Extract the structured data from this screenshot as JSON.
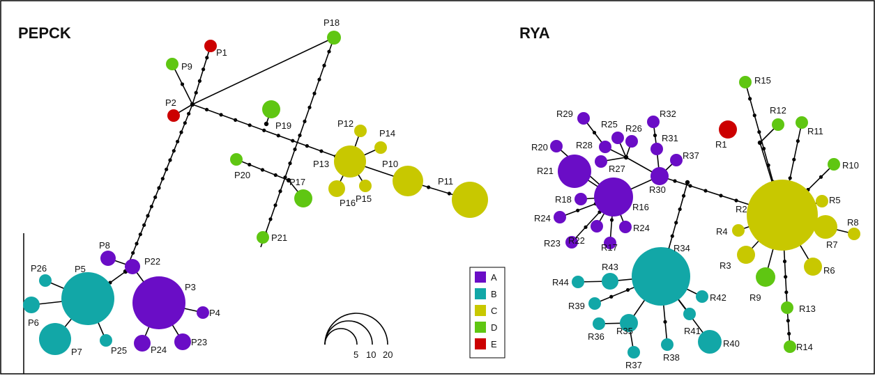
{
  "colors": {
    "A": "#6a0dc6",
    "B": "#12a7a7",
    "C": "#c8c800",
    "D": "#5fc612",
    "E": "#cc0000"
  },
  "legend": [
    {
      "key": "A",
      "label": "A"
    },
    {
      "key": "B",
      "label": "B"
    },
    {
      "key": "C",
      "label": "C"
    },
    {
      "key": "D",
      "label": "D"
    },
    {
      "key": "E",
      "label": "E"
    }
  ],
  "scale": {
    "labels": [
      "5",
      "10",
      "20"
    ]
  },
  "networks": [
    {
      "id": "pepck",
      "title": "PEPCK",
      "nodes": [
        {
          "label": "P1",
          "group": "E",
          "size": 1
        },
        {
          "label": "P2",
          "group": "E",
          "size": 1
        },
        {
          "label": "P3",
          "group": "A",
          "size": 17
        },
        {
          "label": "P4",
          "group": "A",
          "size": 1
        },
        {
          "label": "P5",
          "group": "B",
          "size": 17
        },
        {
          "label": "P6",
          "group": "B",
          "size": 2
        },
        {
          "label": "P7",
          "group": "B",
          "size": 6
        },
        {
          "label": "P8",
          "group": "A",
          "size": 1.5
        },
        {
          "label": "P9",
          "group": "D",
          "size": 1
        },
        {
          "label": "P10",
          "group": "C",
          "size": 6
        },
        {
          "label": "P11",
          "group": "C",
          "size": 8
        },
        {
          "label": "P12",
          "group": "C",
          "size": 1
        },
        {
          "label": "P13",
          "group": "C",
          "size": 6
        },
        {
          "label": "P14",
          "group": "C",
          "size": 1
        },
        {
          "label": "P15",
          "group": "C",
          "size": 1
        },
        {
          "label": "P16",
          "group": "C",
          "size": 2
        },
        {
          "label": "P17",
          "group": "D",
          "size": 2
        },
        {
          "label": "P18",
          "group": "D",
          "size": 1
        },
        {
          "label": "P19",
          "group": "D",
          "size": 2
        },
        {
          "label": "P20",
          "group": "D",
          "size": 1
        },
        {
          "label": "P21",
          "group": "D",
          "size": 1
        },
        {
          "label": "P22",
          "group": "A",
          "size": 1.5
        },
        {
          "label": "P23",
          "group": "A",
          "size": 1.5
        },
        {
          "label": "P24",
          "group": "A",
          "size": 1.5
        },
        {
          "label": "P25",
          "group": "B",
          "size": 1
        },
        {
          "label": "P26",
          "group": "B",
          "size": 1
        }
      ]
    },
    {
      "id": "rya",
      "title": "RYA",
      "nodes": [
        {
          "label": "R1",
          "group": "E",
          "size": 2
        },
        {
          "label": "R2",
          "group": "C",
          "size": 23
        },
        {
          "label": "R3",
          "group": "C",
          "size": 2
        },
        {
          "label": "R4",
          "group": "C",
          "size": 1
        },
        {
          "label": "R5",
          "group": "C",
          "size": 1
        },
        {
          "label": "R6",
          "group": "C",
          "size": 2
        },
        {
          "label": "R7",
          "group": "C",
          "size": 3
        },
        {
          "label": "R8",
          "group": "C",
          "size": 1
        },
        {
          "label": "R9",
          "group": "D",
          "size": 2
        },
        {
          "label": "R10",
          "group": "D",
          "size": 1
        },
        {
          "label": "R11",
          "group": "D",
          "size": 1
        },
        {
          "label": "R12",
          "group": "D",
          "size": 1
        },
        {
          "label": "R13",
          "group": "D",
          "size": 1
        },
        {
          "label": "R14",
          "group": "D",
          "size": 1
        },
        {
          "label": "R15",
          "group": "D",
          "size": 1
        },
        {
          "label": "R16",
          "group": "A",
          "size": 8
        },
        {
          "label": "R17",
          "group": "A",
          "size": 1
        },
        {
          "label": "R18",
          "group": "A",
          "size": 1
        },
        {
          "label": "R20",
          "group": "A",
          "size": 1
        },
        {
          "label": "R21",
          "group": "A",
          "size": 6
        },
        {
          "label": "R22",
          "group": "A",
          "size": 1
        },
        {
          "label": "R23",
          "group": "A",
          "size": 1
        },
        {
          "label": "R24",
          "group": "A",
          "size": 1
        },
        {
          "label": "R24",
          "group": "A",
          "size": 1
        },
        {
          "label": "R25",
          "group": "A",
          "size": 1
        },
        {
          "label": "R26",
          "group": "A",
          "size": 1
        },
        {
          "label": "R27",
          "group": "A",
          "size": 1
        },
        {
          "label": "R28",
          "group": "A",
          "size": 1
        },
        {
          "label": "R29",
          "group": "A",
          "size": 1
        },
        {
          "label": "R30",
          "group": "A",
          "size": 2
        },
        {
          "label": "R31",
          "group": "A",
          "size": 1
        },
        {
          "label": "R32",
          "group": "A",
          "size": 1
        },
        {
          "label": "R37",
          "group": "A",
          "size": 1
        },
        {
          "label": "R34",
          "group": "B",
          "size": 20
        },
        {
          "label": "R35",
          "group": "B",
          "size": 2
        },
        {
          "label": "R36",
          "group": "B",
          "size": 1
        },
        {
          "label": "R37",
          "group": "B",
          "size": 1
        },
        {
          "label": "R38",
          "group": "B",
          "size": 1
        },
        {
          "label": "R39",
          "group": "B",
          "size": 1
        },
        {
          "label": "R40",
          "group": "B",
          "size": 3
        },
        {
          "label": "R41",
          "group": "B",
          "size": 1
        },
        {
          "label": "R42",
          "group": "B",
          "size": 1
        },
        {
          "label": "R43",
          "group": "B",
          "size": 2
        },
        {
          "label": "R44",
          "group": "B",
          "size": 1
        }
      ]
    }
  ]
}
